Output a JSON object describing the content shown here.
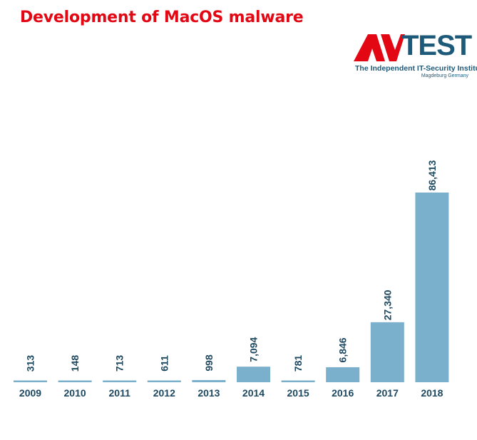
{
  "header": {
    "title": "Development of MacOS malware"
  },
  "logo": {
    "wordmark": "TEST",
    "tagline": "The Independent IT-Security Institute",
    "location": "Magdeburg Germany",
    "brand_colors": {
      "red": "#e30613",
      "blue": "#1d5a7a"
    }
  },
  "chart_data": {
    "type": "bar",
    "title": "Development of MacOS malware",
    "xlabel": "",
    "ylabel": "",
    "categories": [
      "2009",
      "2010",
      "2011",
      "2012",
      "2013",
      "2014",
      "2015",
      "2016",
      "2017",
      "2018"
    ],
    "values": [
      313,
      148,
      713,
      611,
      998,
      7094,
      781,
      6846,
      27340,
      86413
    ],
    "value_labels": [
      "313",
      "148",
      "713",
      "611",
      "998",
      "7,094",
      "781",
      "6,846",
      "27,340",
      "86,413"
    ],
    "ylim": [
      0,
      86413
    ],
    "grid": false,
    "legend": "none",
    "bar_color": "#7ab0cb",
    "label_color": "#1d4860"
  }
}
